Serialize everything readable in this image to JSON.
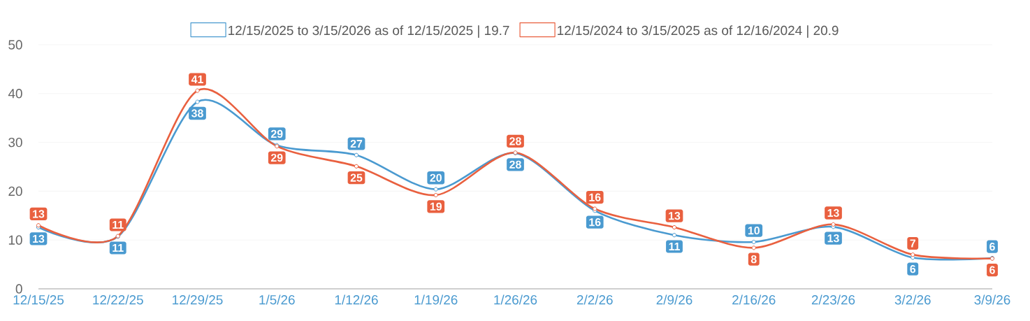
{
  "chart_data": {
    "type": "line",
    "categories": [
      "12/15/25",
      "12/22/25",
      "12/29/25",
      "1/5/26",
      "1/12/26",
      "1/19/26",
      "1/26/26",
      "2/2/26",
      "2/9/26",
      "2/16/26",
      "2/23/26",
      "3/2/26",
      "3/9/26"
    ],
    "series": [
      {
        "name": "12/15/2025 to 3/15/2026 as of 12/15/2025 | 19.7",
        "color": "#4a9ad0",
        "values": [
          12.6,
          10.7,
          38.3,
          29.4,
          27.4,
          20.4,
          27.8,
          16.0,
          11.0,
          9.6,
          12.7,
          6.4,
          6.3
        ],
        "value_labels": [
          "13",
          "11",
          "38",
          "29",
          "27",
          "20",
          "28",
          "16",
          "11",
          "10",
          "13",
          "6",
          "6"
        ]
      },
      {
        "name": "12/15/2024 to 3/15/2025 as of 12/16/2024 | 20.9",
        "color": "#e9603f",
        "values": [
          13.0,
          10.8,
          40.6,
          29.2,
          25.1,
          19.2,
          27.9,
          16.4,
          12.6,
          8.4,
          13.2,
          7.0,
          6.2
        ],
        "value_labels": [
          "13",
          "11",
          "41",
          "29",
          "25",
          "19",
          "28",
          "16",
          "13",
          "8",
          "13",
          "7",
          "6"
        ]
      }
    ],
    "ylim": [
      0,
      50
    ],
    "yticks": [
      0,
      10,
      20,
      30,
      40,
      50
    ],
    "grid": "y",
    "legend": "top",
    "marker": "circle"
  }
}
